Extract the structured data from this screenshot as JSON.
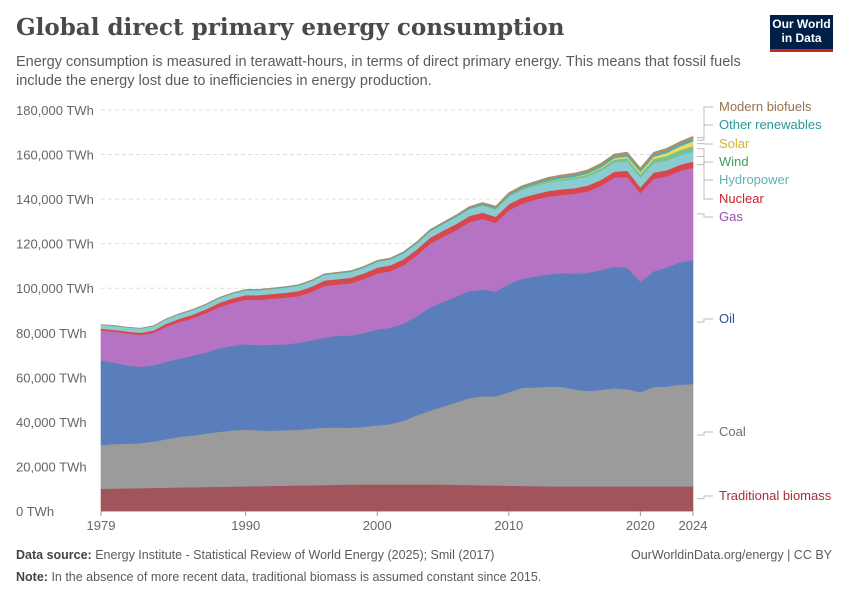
{
  "header": {
    "title": "Global direct primary energy consumption",
    "subtitle": "Energy consumption is measured in terawatt-hours, in terms of direct primary energy. This means that fossil fuels include the energy lost due to inefficiencies in energy production.",
    "logo": "Our World in Data"
  },
  "footer": {
    "source_label": "Data source:",
    "source": "Energy Institute - Statistical Review of World Energy (2025); Smil (2017)",
    "note_label": "Note:",
    "note": "In the absence of more recent data, traditional biomass is assumed constant since 2015.",
    "right": "OurWorldinData.org/energy | CC BY"
  },
  "chart_data": {
    "type": "area",
    "stacked": true,
    "grid": true,
    "legend_placement": "right",
    "ylim": [
      0,
      180000
    ],
    "xlim": [
      1979,
      2024
    ],
    "yticks": [
      0,
      20000,
      40000,
      60000,
      80000,
      100000,
      120000,
      140000,
      160000,
      180000
    ],
    "ytick_labels": [
      "0 TWh",
      "20,000 TWh",
      "40,000 TWh",
      "60,000 TWh",
      "80,000 TWh",
      "100,000 TWh",
      "120,000 TWh",
      "140,000 TWh",
      "160,000 TWh",
      "180,000 TWh"
    ],
    "xticks": [
      1979,
      1990,
      2000,
      2010,
      2020,
      2024
    ],
    "xtick_labels": [
      "1979",
      "1990",
      "2000",
      "2010",
      "2020",
      "2024"
    ],
    "x": [
      1979,
      1980,
      1981,
      1982,
      1983,
      1984,
      1985,
      1986,
      1987,
      1988,
      1989,
      1990,
      1991,
      1992,
      1993,
      1994,
      1995,
      1996,
      1997,
      1998,
      1999,
      2000,
      2001,
      2002,
      2003,
      2004,
      2005,
      2006,
      2007,
      2008,
      2009,
      2010,
      2011,
      2012,
      2013,
      2014,
      2015,
      2016,
      2017,
      2018,
      2019,
      2020,
      2021,
      2022,
      2023,
      2024
    ],
    "series": [
      {
        "name": "Traditional biomass",
        "color": "#a2545c",
        "label_color": "#a2303a",
        "values": [
          10000,
          10100,
          10200,
          10300,
          10400,
          10500,
          10600,
          10700,
          10800,
          10900,
          11000,
          11100,
          11200,
          11300,
          11400,
          11500,
          11600,
          11700,
          11800,
          11900,
          12000,
          12000,
          12000,
          12000,
          12000,
          12000,
          11900,
          11800,
          11700,
          11600,
          11500,
          11400,
          11300,
          11200,
          11100,
          11100,
          11100,
          11100,
          11100,
          11100,
          11100,
          11100,
          11100,
          11100,
          11100,
          11100
        ]
      },
      {
        "name": "Coal",
        "color": "#9b9b9b",
        "label_color": "#707070",
        "values": [
          19600,
          20000,
          20000,
          20200,
          20800,
          21800,
          22800,
          23200,
          24000,
          24700,
          25200,
          25500,
          25000,
          24800,
          24900,
          25000,
          25400,
          25800,
          25700,
          25500,
          25800,
          26500,
          27000,
          28500,
          31000,
          33000,
          35000,
          37000,
          39000,
          40000,
          40000,
          42000,
          44000,
          44300,
          44700,
          44700,
          43500,
          42800,
          43300,
          44000,
          43600,
          42300,
          44500,
          44800,
          45600,
          46000
        ]
      },
      {
        "name": "Oil",
        "color": "#5a7ebb",
        "label_color": "#2d4f9c",
        "values": [
          38000,
          36500,
          35200,
          34300,
          34200,
          34800,
          35000,
          35900,
          36500,
          37500,
          38000,
          38300,
          38200,
          38600,
          38500,
          39000,
          39600,
          40400,
          41200,
          41400,
          42200,
          43000,
          43200,
          43600,
          44500,
          46400,
          47000,
          47500,
          48000,
          47800,
          47000,
          48500,
          49000,
          49800,
          50500,
          51000,
          52000,
          53000,
          53800,
          54500,
          54600,
          49500,
          52000,
          53500,
          55000,
          55500
        ]
      },
      {
        "name": "Gas",
        "color": "#b673c4",
        "label_color": "#9b4dae",
        "values": [
          13500,
          14000,
          14300,
          14300,
          14600,
          15800,
          16500,
          16800,
          17600,
          18500,
          19300,
          20000,
          20400,
          20600,
          21000,
          21000,
          21800,
          23200,
          23000,
          23500,
          24200,
          25200,
          25500,
          26300,
          27300,
          28500,
          29200,
          29800,
          31000,
          31800,
          30900,
          33100,
          33700,
          34500,
          34900,
          35100,
          35800,
          36600,
          37800,
          40000,
          40700,
          39800,
          41500,
          40900,
          41000,
          41500
        ]
      },
      {
        "name": "Nuclear",
        "color": "#d9474c",
        "label_color": "#c8222a",
        "values": [
          700,
          760,
          870,
          950,
          1080,
          1300,
          1500,
          1630,
          1750,
          1890,
          1950,
          2000,
          2100,
          2110,
          2180,
          2230,
          2330,
          2420,
          2400,
          2450,
          2540,
          2580,
          2650,
          2660,
          2640,
          2750,
          2770,
          2800,
          2720,
          2730,
          2700,
          2770,
          2650,
          2450,
          2480,
          2540,
          2570,
          2610,
          2640,
          2700,
          2790,
          2690,
          2800,
          2680,
          2740,
          2770
        ]
      },
      {
        "name": "Hydropower",
        "color": "#8bcbd2",
        "label_color": "#5fb2bb",
        "values": [
          1750,
          1780,
          1800,
          1840,
          1900,
          1980,
          2000,
          2030,
          2050,
          2080,
          2120,
          2150,
          2200,
          2230,
          2300,
          2400,
          2450,
          2500,
          2550,
          2580,
          2580,
          2630,
          2590,
          2660,
          2650,
          2800,
          2900,
          3000,
          3050,
          3200,
          3250,
          3420,
          3500,
          3650,
          3800,
          3900,
          3950,
          4050,
          4080,
          4200,
          4240,
          4340,
          4280,
          4360,
          4250,
          4500
        ]
      },
      {
        "name": "Wind",
        "color": "#77c28f",
        "label_color": "#3c9d5b",
        "values": [
          0,
          0,
          0,
          0,
          0,
          0,
          0,
          0,
          0,
          0,
          0,
          4,
          4,
          5,
          6,
          7,
          8,
          10,
          12,
          16,
          21,
          31,
          38,
          52,
          63,
          85,
          104,
          132,
          170,
          220,
          277,
          346,
          440,
          520,
          645,
          712,
          831,
          961,
          1136,
          1268,
          1419,
          1598,
          1848,
          2100,
          2325,
          2500
        ]
      },
      {
        "name": "Solar",
        "color": "#f2d95c",
        "label_color": "#d8b52b",
        "values": [
          0,
          0,
          0,
          0,
          0,
          0,
          0,
          0,
          0,
          0,
          0,
          0,
          0,
          0,
          0,
          0,
          0,
          0,
          0,
          0,
          0,
          1,
          1,
          2,
          3,
          3,
          4,
          6,
          8,
          12,
          20,
          32,
          64,
          100,
          136,
          198,
          257,
          329,
          451,
          573,
          700,
          850,
          1030,
          1300,
          1640,
          2100
        ]
      },
      {
        "name": "Other renewables",
        "color": "#4fb0b1",
        "label_color": "#2b979a",
        "values": [
          110,
          120,
          130,
          140,
          150,
          170,
          190,
          200,
          210,
          230,
          250,
          280,
          290,
          300,
          310,
          320,
          330,
          340,
          350,
          370,
          390,
          410,
          420,
          440,
          460,
          480,
          510,
          530,
          560,
          580,
          610,
          650,
          680,
          720,
          760,
          800,
          830,
          850,
          880,
          910,
          940,
          950,
          970,
          990,
          1000,
          1020
        ]
      },
      {
        "name": "Modern biofuels",
        "color": "#a88f70",
        "label_color": "#94734f",
        "values": [
          20,
          30,
          40,
          50,
          60,
          70,
          80,
          90,
          100,
          110,
          120,
          130,
          130,
          130,
          140,
          140,
          150,
          160,
          170,
          170,
          170,
          180,
          190,
          210,
          230,
          260,
          300,
          360,
          440,
          560,
          620,
          700,
          700,
          720,
          780,
          830,
          850,
          860,
          900,
          960,
          1000,
          940,
          1000,
          1080,
          1150,
          1200
        ]
      }
    ]
  }
}
